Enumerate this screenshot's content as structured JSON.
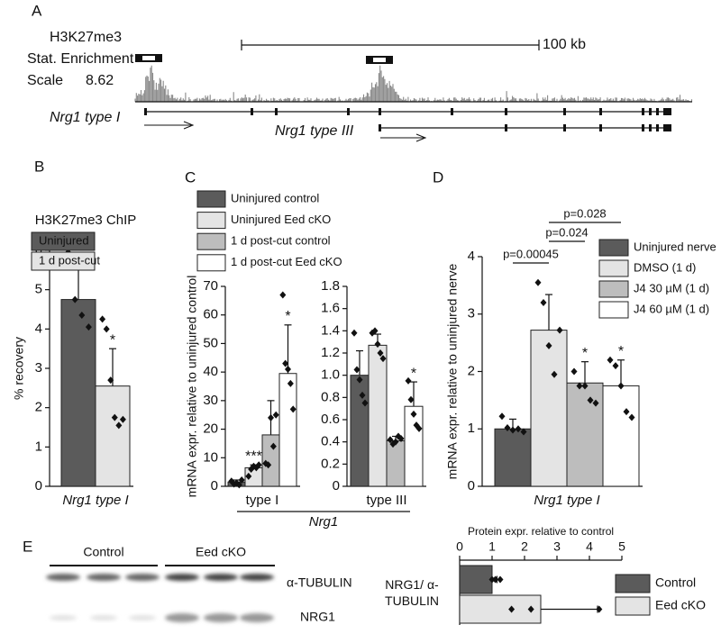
{
  "chart_data": [
    {
      "type": "track",
      "panel": "A",
      "title": "H3K27me3",
      "subtitle": "Stat. Enrichment",
      "scale_label": "Scale",
      "scale": 8.62,
      "scale_bar": "100 kb",
      "genes": [
        "Nrg1 type I",
        "Nrg1 type III"
      ]
    },
    {
      "type": "bar",
      "panel": "B",
      "title": "H3K27me3 ChIP",
      "ylabel": "% recovery",
      "categories": [
        "Nrg1 type I"
      ],
      "ylim": [
        0,
        6
      ],
      "yticks": [
        0,
        1,
        2,
        3,
        4,
        5,
        6
      ],
      "series": [
        {
          "name": "Uninjured",
          "color": "#5b5b5b",
          "values": [
            4.75
          ],
          "errors": [
            0.85
          ],
          "points": [
            [
              5.95,
              4.75,
              4.35,
              4.05
            ]
          ]
        },
        {
          "name": "1 d post-cut",
          "color": "#e4e4e4",
          "values": [
            2.55
          ],
          "errors": [
            0.95
          ],
          "points": [
            [
              4.25,
              4.0,
              2.7,
              1.75,
              1.55,
              1.7
            ]
          ],
          "significance": [
            "*"
          ]
        }
      ]
    },
    {
      "type": "bar",
      "panel": "C",
      "ylabel": "mRNA expr. relative to uninjured control",
      "xlabel": "Nrg1",
      "categories": [
        "type I",
        "type III"
      ],
      "subplots": [
        {
          "ylim": [
            0,
            70
          ],
          "yticks": [
            0,
            10,
            20,
            30,
            40,
            50,
            60,
            70
          ]
        },
        {
          "ylim": [
            0,
            1.8
          ],
          "yticks": [
            0,
            0.2,
            0.4,
            0.6,
            0.8,
            {
              "value": 1,
              "label": "1.0"
            },
            1.2,
            1.4,
            1.6,
            1.8
          ]
        }
      ],
      "series": [
        {
          "name": "Uninjured control",
          "color": "#5b5b5b",
          "values": [
            1.5,
            1.0
          ],
          "errors": [
            0.7,
            0.22
          ],
          "points": [
            [
              1.8,
              0.8,
              1.2,
              0.5,
              2.2
            ],
            [
              1.38,
              1.05,
              0.96,
              0.82,
              0.75
            ]
          ],
          "significance": [
            null,
            null
          ]
        },
        {
          "name": "Uninjured Eed cKO",
          "color": "#e4e4e4",
          "values": [
            6.5,
            1.27
          ],
          "errors": [
            1.0,
            0.1
          ],
          "points": [
            [
              3.5,
              6,
              7,
              6.5,
              7.5
            ],
            [
              1.38,
              1.4,
              1.28,
              1.2,
              1.15
            ]
          ],
          "significance": [
            "***",
            null
          ]
        },
        {
          "name": "1 d post-cut control",
          "color": "#bdbdbd",
          "values": [
            18,
            0.41
          ],
          "errors": [
            12,
            0.04
          ],
          "points": [
            [
              8,
              7.5,
              24,
              14,
              25
            ],
            [
              0.42,
              0.38,
              0.4,
              0.45,
              0.43
            ]
          ],
          "significance": [
            null,
            null
          ]
        },
        {
          "name": "1 d post-cut Eed cKO",
          "color": "#ffffff",
          "values": [
            39.5,
            0.72
          ],
          "errors": [
            17,
            0.22
          ],
          "points": [
            [
              67,
              43,
              41,
              36,
              27
            ],
            [
              0.95,
              0.78,
              0.65,
              0.55,
              0.52
            ]
          ],
          "significance": [
            "*",
            "*"
          ]
        }
      ]
    },
    {
      "type": "bar",
      "panel": "D",
      "ylabel": "mRNA expr. relative to uninjured nerve",
      "categories": [
        "Nrg1 type I"
      ],
      "ylim": [
        0,
        4
      ],
      "yticks": [
        0,
        1,
        2,
        3,
        4
      ],
      "annotations": [
        "p=0.00045",
        "p=0.024",
        "p=0.028"
      ],
      "series": [
        {
          "name": "Uninjured nerve",
          "color": "#5b5b5b",
          "values": [
            1.0
          ],
          "errors": [
            0.17
          ],
          "points": [
            [
              1.22,
              1.02,
              0.98,
              1.0,
              0.95
            ]
          ]
        },
        {
          "name": "DMSO (1 d)",
          "color": "#e4e4e4",
          "values": [
            2.72
          ],
          "errors": [
            0.62
          ],
          "points": [
            [
              3.55,
              3.2,
              2.45,
              1.95,
              2.72
            ]
          ]
        },
        {
          "name": "J4 30 µM (1 d)",
          "color": "#bdbdbd",
          "values": [
            1.8
          ],
          "errors": [
            0.37
          ],
          "points": [
            [
              2.0,
              1.75,
              1.75,
              1.5,
              1.45
            ]
          ],
          "significance": [
            "*"
          ]
        },
        {
          "name": "J4 60 µM (1 d)",
          "color": "#ffffff",
          "values": [
            1.75
          ],
          "errors": [
            0.45
          ],
          "points": [
            [
              2.2,
              2.1,
              1.75,
              1.3,
              1.2
            ]
          ],
          "significance": [
            "*"
          ]
        }
      ]
    },
    {
      "type": "blot",
      "panel": "E",
      "groups": [
        "Control",
        "Eed cKO"
      ],
      "bands": [
        "α-TUBULIN",
        "NRG1"
      ]
    },
    {
      "type": "hbar",
      "title": "Protein expr. relative to control",
      "categories": [
        "NRG1/ α-TUBULIN"
      ],
      "xlim": [
        0,
        5
      ],
      "xticks": [
        0,
        1,
        2,
        3,
        4,
        5
      ],
      "series": [
        {
          "name": "Control",
          "color": "#5b5b5b",
          "values": [
            1.0
          ],
          "errors": [
            0.15
          ],
          "points": [
            [
              1.25,
              1.0,
              1.1
            ]
          ]
        },
        {
          "name": "Eed cKO",
          "color": "#e4e4e4",
          "values": [
            2.5
          ],
          "errors": [
            1.75
          ],
          "points": [
            [
              1.6,
              2.2,
              4.3
            ]
          ]
        }
      ]
    }
  ]
}
